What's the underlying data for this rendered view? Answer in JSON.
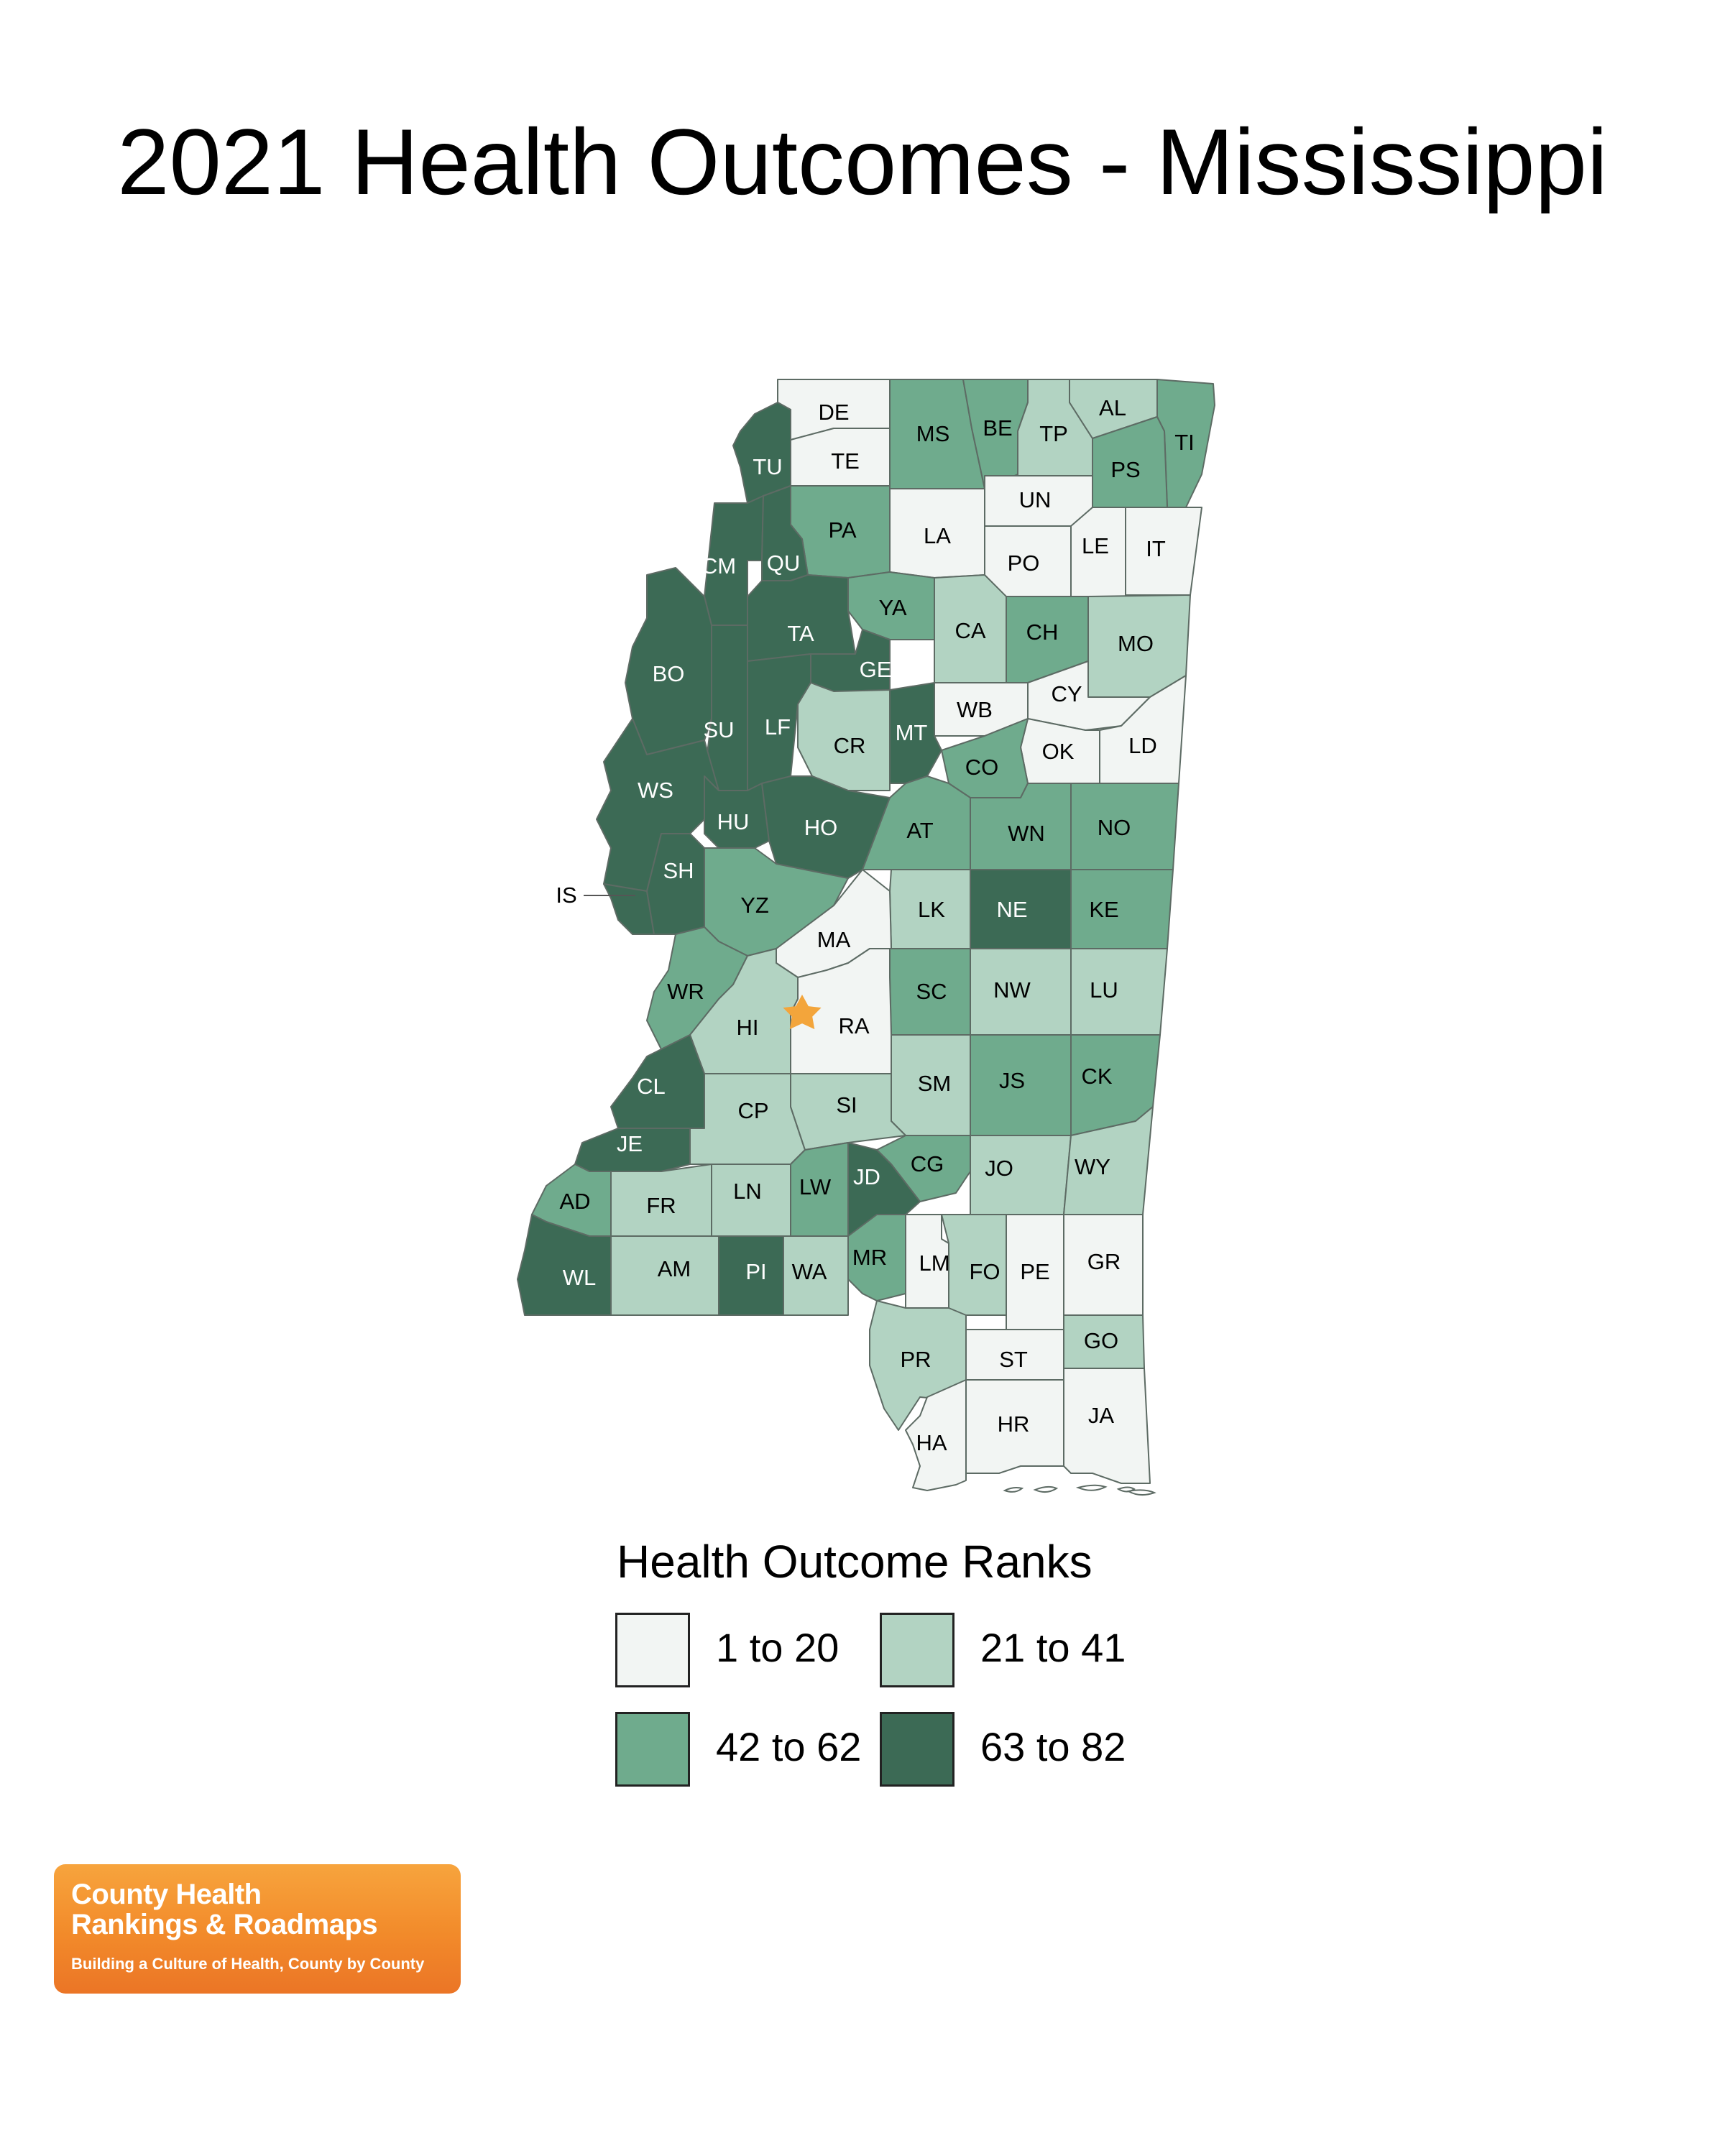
{
  "title": "2021 Health Outcomes - Mississippi",
  "legend": {
    "title": "Health Outcome Ranks",
    "items": [
      {
        "label": "1 to 20",
        "color": "#f2f5f3"
      },
      {
        "label": "21 to 41",
        "color": "#b2d3c2"
      },
      {
        "label": "42 to 62",
        "color": "#6fab8d"
      },
      {
        "label": "63 to 82",
        "color": "#3c6a55"
      }
    ]
  },
  "map": {
    "capital_marker_color": "#f3a53b",
    "counties": [
      {
        "code": "DE",
        "rank_group": 1
      },
      {
        "code": "TE",
        "rank_group": 1
      },
      {
        "code": "MS",
        "rank_group": 3
      },
      {
        "code": "BE",
        "rank_group": 3
      },
      {
        "code": "TP",
        "rank_group": 2
      },
      {
        "code": "AL",
        "rank_group": 2
      },
      {
        "code": "TI",
        "rank_group": 3
      },
      {
        "code": "PS",
        "rank_group": 3
      },
      {
        "code": "TU",
        "rank_group": 4
      },
      {
        "code": "PA",
        "rank_group": 3
      },
      {
        "code": "LA",
        "rank_group": 1
      },
      {
        "code": "UN",
        "rank_group": 1
      },
      {
        "code": "PO",
        "rank_group": 1
      },
      {
        "code": "LE",
        "rank_group": 1
      },
      {
        "code": "IT",
        "rank_group": 1
      },
      {
        "code": "CM",
        "rank_group": 4
      },
      {
        "code": "QU",
        "rank_group": 4
      },
      {
        "code": "YA",
        "rank_group": 3
      },
      {
        "code": "CA",
        "rank_group": 2
      },
      {
        "code": "CH",
        "rank_group": 3
      },
      {
        "code": "MO",
        "rank_group": 2
      },
      {
        "code": "TA",
        "rank_group": 4
      },
      {
        "code": "GE",
        "rank_group": 4
      },
      {
        "code": "BO",
        "rank_group": 4
      },
      {
        "code": "WB",
        "rank_group": 1
      },
      {
        "code": "CY",
        "rank_group": 1
      },
      {
        "code": "SU",
        "rank_group": 4
      },
      {
        "code": "LF",
        "rank_group": 4
      },
      {
        "code": "CR",
        "rank_group": 2
      },
      {
        "code": "MT",
        "rank_group": 4
      },
      {
        "code": "OK",
        "rank_group": 1
      },
      {
        "code": "LD",
        "rank_group": 1
      },
      {
        "code": "CO",
        "rank_group": 3
      },
      {
        "code": "WS",
        "rank_group": 4
      },
      {
        "code": "HU",
        "rank_group": 4
      },
      {
        "code": "HO",
        "rank_group": 4
      },
      {
        "code": "AT",
        "rank_group": 3
      },
      {
        "code": "WN",
        "rank_group": 3
      },
      {
        "code": "NO",
        "rank_group": 3
      },
      {
        "code": "IS",
        "rank_group": 4
      },
      {
        "code": "SH",
        "rank_group": 4
      },
      {
        "code": "YZ",
        "rank_group": 3
      },
      {
        "code": "LK",
        "rank_group": 2
      },
      {
        "code": "NE",
        "rank_group": 4
      },
      {
        "code": "KE",
        "rank_group": 3
      },
      {
        "code": "MA",
        "rank_group": 1
      },
      {
        "code": "WR",
        "rank_group": 3
      },
      {
        "code": "SC",
        "rank_group": 3
      },
      {
        "code": "NW",
        "rank_group": 2
      },
      {
        "code": "LU",
        "rank_group": 2
      },
      {
        "code": "HI",
        "rank_group": 2
      },
      {
        "code": "RA",
        "rank_group": 1
      },
      {
        "code": "SM",
        "rank_group": 2
      },
      {
        "code": "JS",
        "rank_group": 3
      },
      {
        "code": "CK",
        "rank_group": 3
      },
      {
        "code": "CL",
        "rank_group": 4
      },
      {
        "code": "CP",
        "rank_group": 2
      },
      {
        "code": "SI",
        "rank_group": 2
      },
      {
        "code": "JE",
        "rank_group": 4
      },
      {
        "code": "CG",
        "rank_group": 3
      },
      {
        "code": "JO",
        "rank_group": 2
      },
      {
        "code": "WY",
        "rank_group": 2
      },
      {
        "code": "AD",
        "rank_group": 3
      },
      {
        "code": "FR",
        "rank_group": 2
      },
      {
        "code": "LN",
        "rank_group": 2
      },
      {
        "code": "LW",
        "rank_group": 3
      },
      {
        "code": "JD",
        "rank_group": 4
      },
      {
        "code": "WL",
        "rank_group": 4
      },
      {
        "code": "AM",
        "rank_group": 2
      },
      {
        "code": "PI",
        "rank_group": 4
      },
      {
        "code": "WA",
        "rank_group": 2
      },
      {
        "code": "MR",
        "rank_group": 3
      },
      {
        "code": "LM",
        "rank_group": 1
      },
      {
        "code": "FO",
        "rank_group": 2
      },
      {
        "code": "PE",
        "rank_group": 1
      },
      {
        "code": "GR",
        "rank_group": 1
      },
      {
        "code": "PR",
        "rank_group": 2
      },
      {
        "code": "ST",
        "rank_group": 1
      },
      {
        "code": "GO",
        "rank_group": 2
      },
      {
        "code": "HA",
        "rank_group": 1
      },
      {
        "code": "HR",
        "rank_group": 1
      },
      {
        "code": "JA",
        "rank_group": 1
      }
    ]
  },
  "logo": {
    "line1": "County Health",
    "line2": "Rankings & Roadmaps",
    "tagline": "Building a Culture of Health, County by County"
  }
}
